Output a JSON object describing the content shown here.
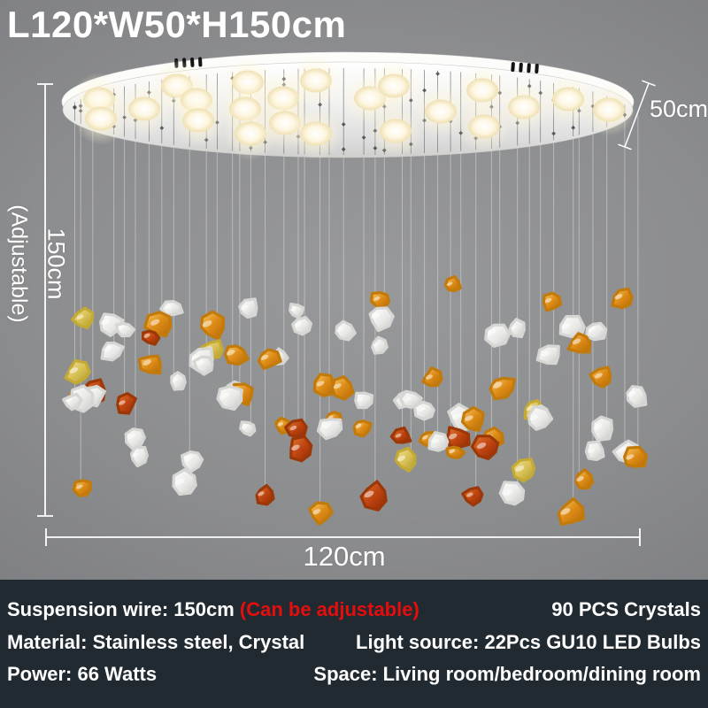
{
  "title": "L120*W50*H150cm",
  "dimensions": {
    "width_label": "50cm",
    "height_label": "150cm",
    "height_note": "(Adjustable)",
    "length_label": "120cm"
  },
  "specs": {
    "rows": [
      {
        "left": "Suspension wire: 150cm ",
        "left_note": "(Can be adjustable)",
        "right": "90 PCS Crystals"
      },
      {
        "left": "Material: Stainless steel, Crystal",
        "left_note": "",
        "right": "Light source: 22Pcs GU10 LED Bulbs"
      },
      {
        "left": "Power: 66 Watts",
        "left_note": "",
        "right": "Space: Living room/bedroom/dining room"
      }
    ]
  },
  "chandelier": {
    "bulb_count": 22,
    "crystal_count": 90,
    "wire_count": 44
  },
  "colors": {
    "accent_red": "#e60d0d",
    "band_bg": "#212a31",
    "dimension_line": "#ffffff",
    "plate_white": "#f4f4f2",
    "bulb_glow": "#fff6da",
    "crystal_clear": "#e9e9e7",
    "crystal_amber": "#dd8b16",
    "crystal_gold": "#d9c258",
    "crystal_red": "#bf4410"
  }
}
